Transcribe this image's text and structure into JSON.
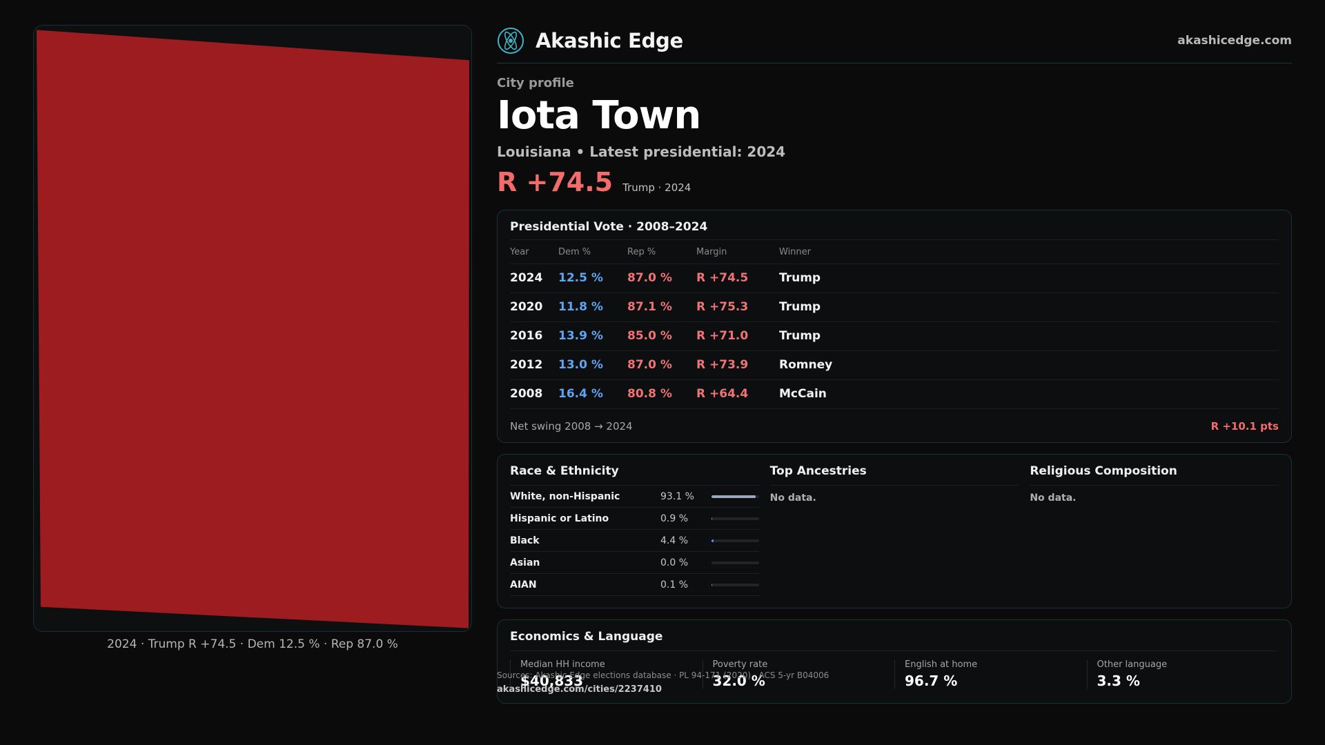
{
  "map": {
    "fill_color": "#9c1c20",
    "caption": "2024 · Trump R +74.5 · Dem 12.5 % · Rep 87.0 %"
  },
  "header": {
    "brand": "Akashic Edge",
    "site": "akashicedge.com",
    "logo_icon": "atom-icon"
  },
  "profile": {
    "eyebrow": "City profile",
    "title": "Iota Town",
    "subtitle": "Louisiana • Latest presidential: 2024",
    "margin": "R +74.5",
    "margin_note": "Trump · 2024"
  },
  "presidential": {
    "title": "Presidential Vote · 2008–2024",
    "headers": [
      "Year",
      "Dem %",
      "Rep %",
      "Margin",
      "Winner"
    ],
    "rows": [
      {
        "year": "2024",
        "dem": "12.5 %",
        "rep": "87.0 %",
        "margin": "R +74.5",
        "winner": "Trump"
      },
      {
        "year": "2020",
        "dem": "11.8 %",
        "rep": "87.1 %",
        "margin": "R +75.3",
        "winner": "Trump"
      },
      {
        "year": "2016",
        "dem": "13.9 %",
        "rep": "85.0 %",
        "margin": "R +71.0",
        "winner": "Trump"
      },
      {
        "year": "2012",
        "dem": "13.0 %",
        "rep": "87.0 %",
        "margin": "R +73.9",
        "winner": "Romney"
      },
      {
        "year": "2008",
        "dem": "16.4 %",
        "rep": "80.8 %",
        "margin": "R +64.4",
        "winner": "McCain"
      }
    ],
    "swing_label": "Net swing 2008 → 2024",
    "swing_value": "R +10.1 pts"
  },
  "race": {
    "title": "Race & Ethnicity",
    "rows": [
      {
        "label": "White, non-Hispanic",
        "pct": "93.1 %",
        "fraction": 0.931
      },
      {
        "label": "Hispanic or Latino",
        "pct": "0.9 %",
        "fraction": 0.009
      },
      {
        "label": "Black",
        "pct": "4.4 %",
        "fraction": 0.044
      },
      {
        "label": "Asian",
        "pct": "0.0 %",
        "fraction": 0.0
      },
      {
        "label": "AIAN",
        "pct": "0.1 %",
        "fraction": 0.001
      }
    ]
  },
  "ancestries": {
    "title": "Top Ancestries",
    "empty": "No data."
  },
  "religion": {
    "title": "Religious Composition",
    "empty": "No data."
  },
  "economics": {
    "title": "Economics & Language",
    "cells": [
      {
        "label": "Median HH income",
        "value": "$40,833"
      },
      {
        "label": "Poverty rate",
        "value": "32.0 %"
      },
      {
        "label": "English at home",
        "value": "96.7 %"
      },
      {
        "label": "Other language",
        "value": "3.3 %"
      }
    ]
  },
  "footer": {
    "sources": "Sources: Akashic Edge elections database · PL 94-171 (2020) · ACS 5-yr B04006",
    "permalink": "akashicedge.com/cities/2237410"
  }
}
